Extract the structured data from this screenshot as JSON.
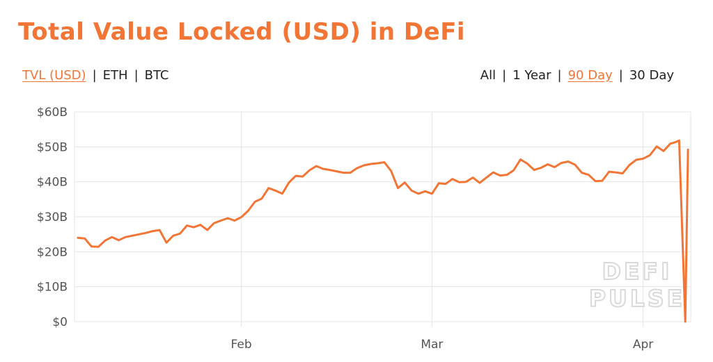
{
  "title": "Total Value Locked (USD) in DeFi",
  "currency_options": [
    {
      "label": "TVL (USD)",
      "active": true
    },
    {
      "label": "ETH",
      "active": false
    },
    {
      "label": "BTC",
      "active": false
    }
  ],
  "range_options": [
    {
      "label": "All",
      "active": false
    },
    {
      "label": "1 Year",
      "active": false
    },
    {
      "label": "90 Day",
      "active": true
    },
    {
      "label": "30 Day",
      "active": false
    }
  ],
  "separator": "|",
  "watermark": {
    "line1": "DEFI",
    "line2": "PULSE"
  },
  "colors": {
    "accent": "#f37535",
    "grid": "#e6e6e6",
    "axis_text": "#555555",
    "watermark": "#d9d9d9"
  },
  "chart_data": {
    "type": "line",
    "title": "Total Value Locked (USD) in DeFi",
    "xlabel": "",
    "ylabel": "",
    "ylim": [
      0,
      60
    ],
    "y_ticks": [
      0,
      10,
      20,
      30,
      40,
      50,
      60
    ],
    "y_tick_labels": [
      "$0",
      "$10B",
      "$20B",
      "$30B",
      "$40B",
      "$50B",
      "$60B"
    ],
    "x_ticks": [
      {
        "label": "Feb",
        "day": 24
      },
      {
        "label": "Mar",
        "day": 52
      },
      {
        "label": "Apr",
        "day": 83
      }
    ],
    "x_range": [
      -0.5,
      88
    ],
    "grid": true,
    "series": [
      {
        "values": [
          [
            0,
            24
          ],
          [
            1,
            23.8
          ],
          [
            2,
            21.5
          ],
          [
            3,
            21.4
          ],
          [
            4,
            23.2
          ],
          [
            5,
            24.2
          ],
          [
            6,
            23.3
          ],
          [
            7,
            24.2
          ],
          [
            8,
            24.6
          ],
          [
            9,
            25.0
          ],
          [
            10,
            25.4
          ],
          [
            11,
            25.9
          ],
          [
            12,
            26.2
          ],
          [
            13,
            22.6
          ],
          [
            14,
            24.6
          ],
          [
            15,
            25.2
          ],
          [
            16,
            27.5
          ],
          [
            17,
            27.0
          ],
          [
            18,
            27.7
          ],
          [
            19,
            26.2
          ],
          [
            20,
            28.2
          ],
          [
            21,
            28.9
          ],
          [
            22,
            29.6
          ],
          [
            23,
            28.9
          ],
          [
            24,
            29.9
          ],
          [
            25,
            31.7
          ],
          [
            26,
            34.3
          ],
          [
            27,
            35.2
          ],
          [
            28,
            38.2
          ],
          [
            29,
            37.5
          ],
          [
            30,
            36.6
          ],
          [
            31,
            39.8
          ],
          [
            32,
            41.7
          ],
          [
            33,
            41.5
          ],
          [
            34,
            43.3
          ],
          [
            35,
            44.5
          ],
          [
            36,
            43.7
          ],
          [
            37,
            43.4
          ],
          [
            38,
            43.0
          ],
          [
            39,
            42.6
          ],
          [
            40,
            42.6
          ],
          [
            41,
            43.9
          ],
          [
            42,
            44.7
          ],
          [
            43,
            45.1
          ],
          [
            44,
            45.3
          ],
          [
            45,
            45.6
          ],
          [
            46,
            43.1
          ],
          [
            47,
            38.2
          ],
          [
            48,
            39.8
          ],
          [
            49,
            37.5
          ],
          [
            50,
            36.6
          ],
          [
            51,
            37.3
          ],
          [
            52,
            36.6
          ],
          [
            53,
            39.6
          ],
          [
            54,
            39.4
          ],
          [
            55,
            40.8
          ],
          [
            56,
            39.9
          ],
          [
            57,
            40.0
          ],
          [
            58,
            41.2
          ],
          [
            59,
            39.7
          ],
          [
            60,
            41.2
          ],
          [
            61,
            42.7
          ],
          [
            62,
            41.8
          ],
          [
            63,
            42.0
          ],
          [
            64,
            43.3
          ],
          [
            65,
            46.4
          ],
          [
            66,
            45.2
          ],
          [
            67,
            43.4
          ],
          [
            68,
            44.0
          ],
          [
            69,
            45.0
          ],
          [
            70,
            44.2
          ],
          [
            71,
            45.4
          ],
          [
            72,
            45.8
          ],
          [
            73,
            44.9
          ],
          [
            74,
            42.6
          ],
          [
            75,
            42.0
          ],
          [
            76,
            40.2
          ],
          [
            77,
            40.3
          ],
          [
            78,
            42.9
          ],
          [
            79,
            42.7
          ],
          [
            80,
            42.4
          ],
          [
            81,
            44.8
          ],
          [
            82,
            46.3
          ],
          [
            83,
            46.6
          ],
          [
            84,
            47.6
          ],
          [
            85,
            50.1
          ],
          [
            86,
            48.8
          ],
          [
            87,
            50.9
          ],
          [
            87.7,
            51.3
          ],
          [
            88.3,
            51.8
          ],
          [
            89.2,
            0
          ],
          [
            89.6,
            49.2
          ]
        ]
      }
    ]
  }
}
